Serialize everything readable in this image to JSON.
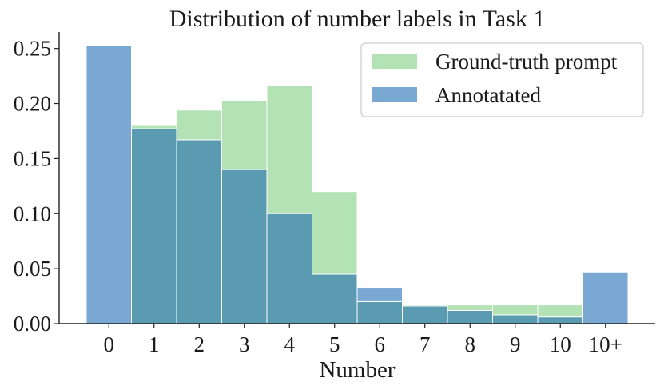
{
  "chart_data": {
    "type": "bar",
    "title": "Distribution of number labels in Task 1",
    "xlabel": "Number",
    "ylabel": "",
    "categories": [
      "0",
      "1",
      "2",
      "3",
      "4",
      "5",
      "6",
      "7",
      "8",
      "9",
      "10",
      "10+"
    ],
    "series": [
      {
        "name": "Ground-truth prompt",
        "color": "#b3e2b5",
        "values": [
          0.0,
          0.18,
          0.194,
          0.203,
          0.216,
          0.12,
          0.02,
          0.017,
          0.017,
          0.017,
          0.017,
          0.0
        ]
      },
      {
        "name": "Annotatated",
        "color": "#79a8d3",
        "values": [
          0.253,
          0.177,
          0.167,
          0.14,
          0.1,
          0.045,
          0.033,
          0.016,
          0.012,
          0.008,
          0.006,
          0.047
        ]
      }
    ],
    "overlap_color": "#5b9bb1",
    "yticks": [
      "0.00",
      "0.05",
      "0.10",
      "0.15",
      "0.20",
      "0.25"
    ],
    "ytick_values": [
      0,
      0.05,
      0.1,
      0.15,
      0.2,
      0.25
    ],
    "ylim": [
      0,
      0.265
    ],
    "grid": false,
    "legend_position": "top-right"
  }
}
